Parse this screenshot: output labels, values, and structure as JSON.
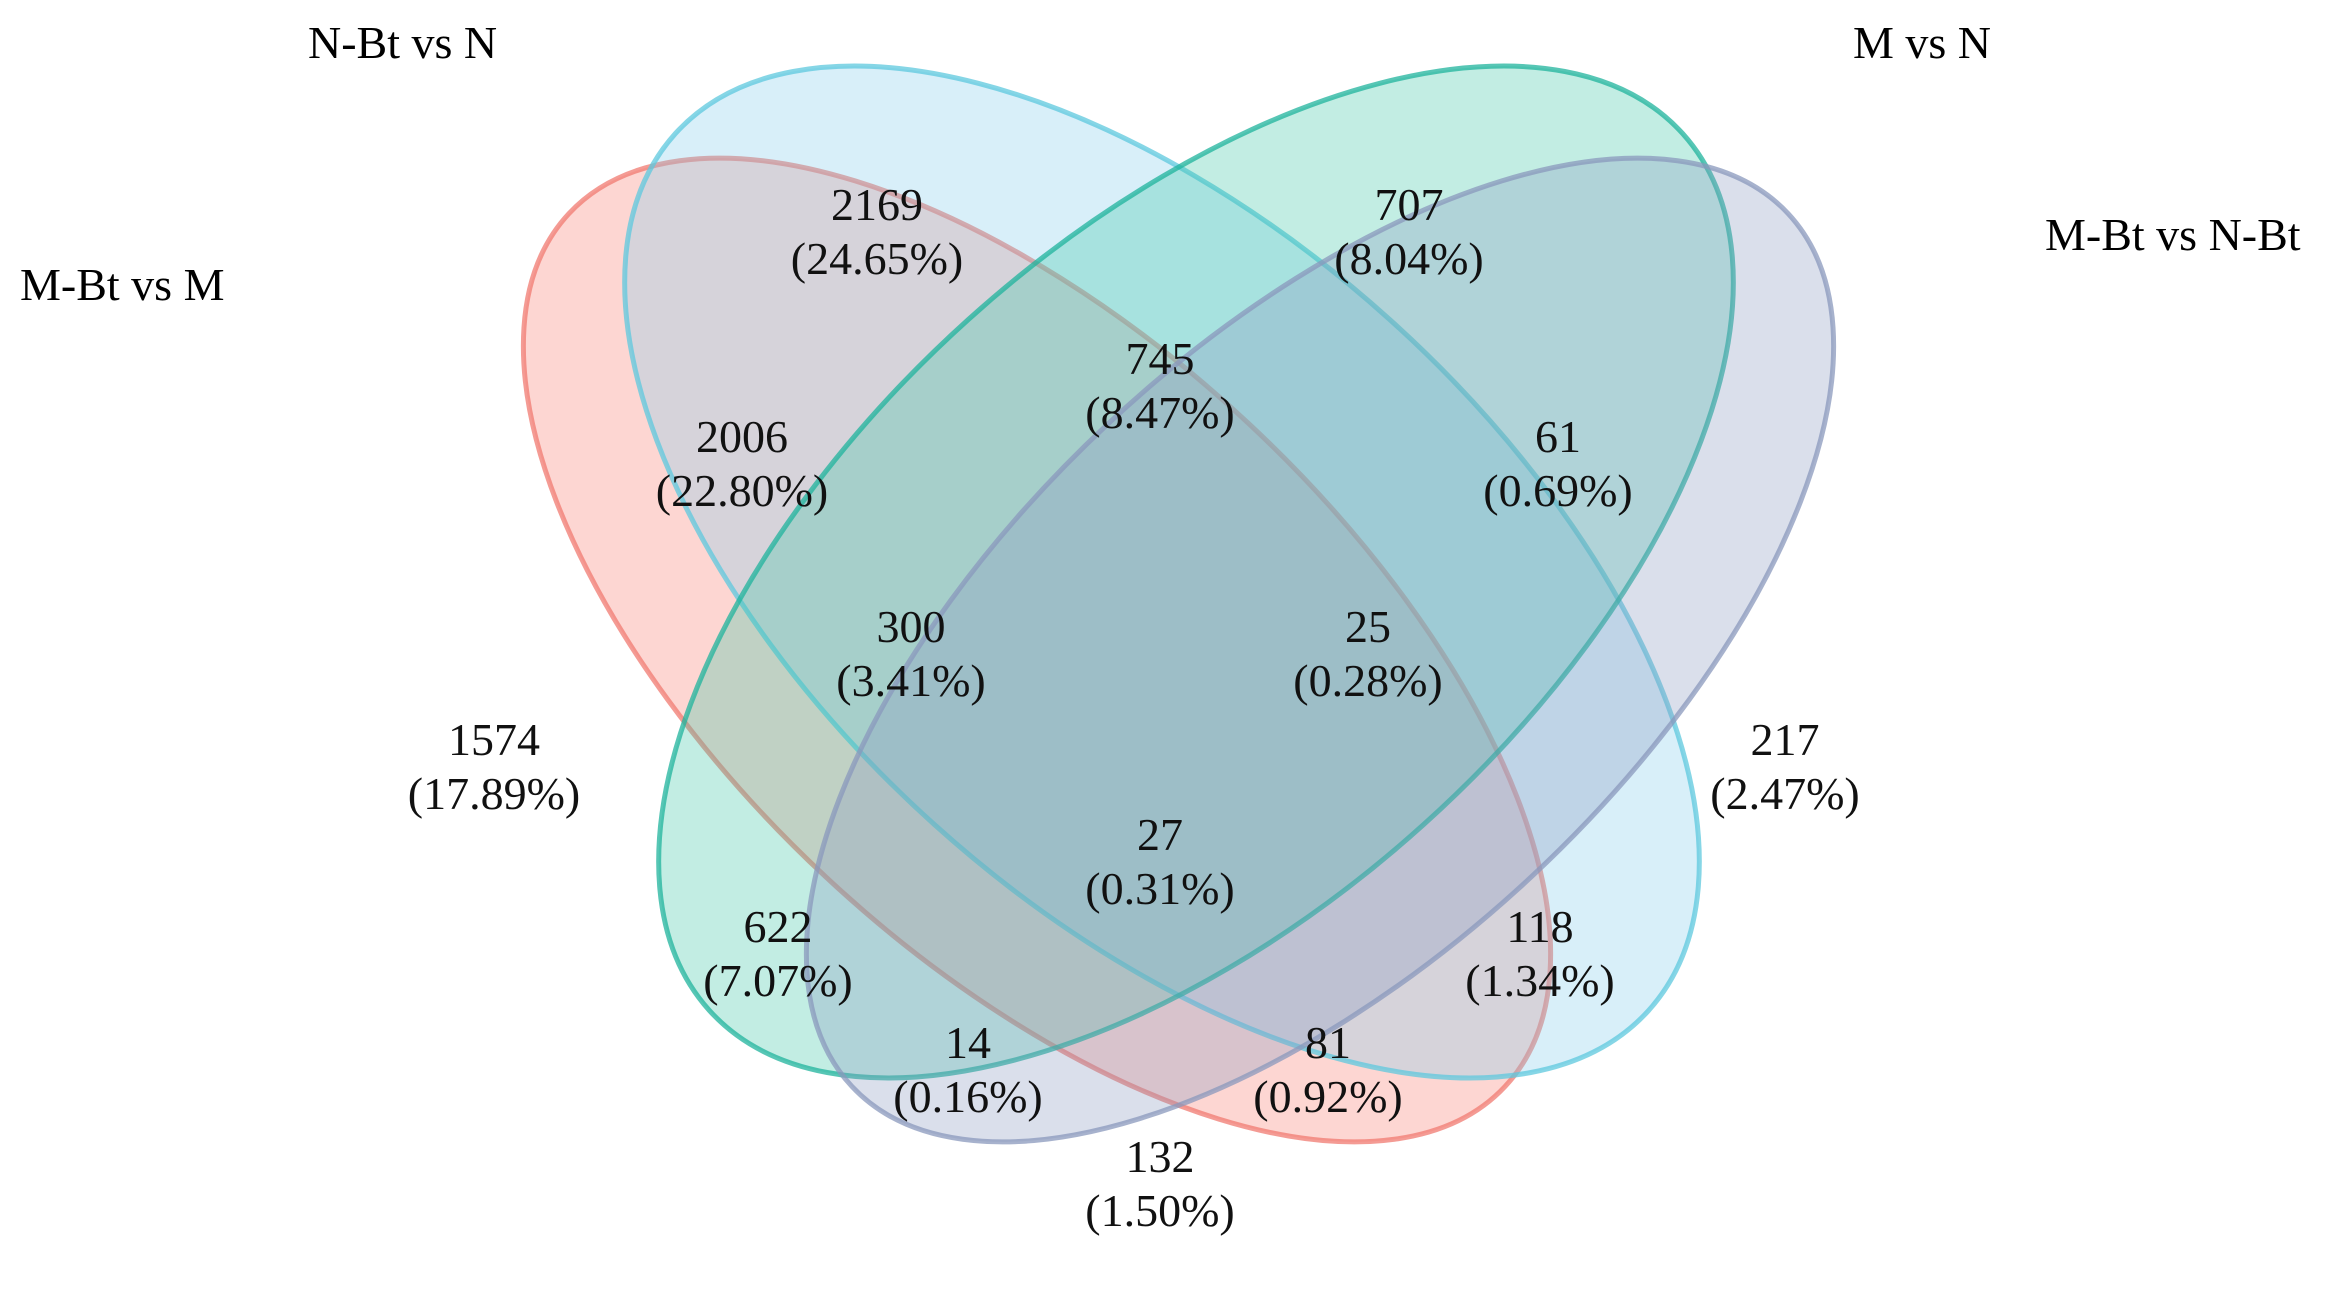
{
  "sets": [
    {
      "key": "m_bt_vs_m",
      "name": "M-Bt vs M",
      "fill": "#FA8072",
      "stroke": "#F07A70"
    },
    {
      "key": "n_bt_vs_n",
      "name": "N-Bt vs N",
      "fill": "#87CEEB",
      "stroke": "#5EC8DE"
    },
    {
      "key": "m_vs_n",
      "name": "M vs N",
      "fill": "#40C8A8",
      "stroke": "#1FB39C"
    },
    {
      "key": "m_bt_vs_n_bt",
      "name": "M-Bt vs N-Bt",
      "fill": "#8C9CC0",
      "stroke": "#8A98BC"
    }
  ],
  "regions": [
    {
      "name": "only-n-bt-vs-n",
      "count": "2169",
      "pct": "(24.65%)"
    },
    {
      "name": "only-m-vs-n",
      "count": "707",
      "pct": "(8.04%)"
    },
    {
      "name": "n-bt-vs-n-and-m-vs-n",
      "count": "745",
      "pct": "(8.47%)"
    },
    {
      "name": "m-bt-vs-m-and-n-bt-vs-n",
      "count": "2006",
      "pct": "(22.80%)"
    },
    {
      "name": "m-vs-n-and-m-bt-vs-n-bt",
      "count": "61",
      "pct": "(0.69%)"
    },
    {
      "name": "m-bt-vs-m-n-bt-vs-n-m-vs-n",
      "count": "300",
      "pct": "(3.41%)"
    },
    {
      "name": "n-bt-vs-n-m-vs-n-m-bt-vs-n-bt",
      "count": "25",
      "pct": "(0.28%)"
    },
    {
      "name": "only-m-bt-vs-m",
      "count": "1574",
      "pct": "(17.89%)"
    },
    {
      "name": "only-m-bt-vs-n-bt",
      "count": "217",
      "pct": "(2.47%)"
    },
    {
      "name": "all-four",
      "count": "27",
      "pct": "(0.31%)"
    },
    {
      "name": "m-bt-vs-m-and-m-vs-n",
      "count": "622",
      "pct": "(7.07%)"
    },
    {
      "name": "n-bt-vs-n-and-m-bt-vs-n-bt",
      "count": "118",
      "pct": "(1.34%)"
    },
    {
      "name": "m-bt-vs-m-m-vs-n-m-bt-vs-n-bt",
      "count": "14",
      "pct": "(0.16%)"
    },
    {
      "name": "m-bt-vs-m-n-bt-vs-n-m-bt-vs-n-bt",
      "count": "81",
      "pct": "(0.92%)"
    },
    {
      "name": "m-bt-vs-m-and-m-bt-vs-n-bt",
      "count": "132",
      "pct": "(1.50%)"
    }
  ]
}
